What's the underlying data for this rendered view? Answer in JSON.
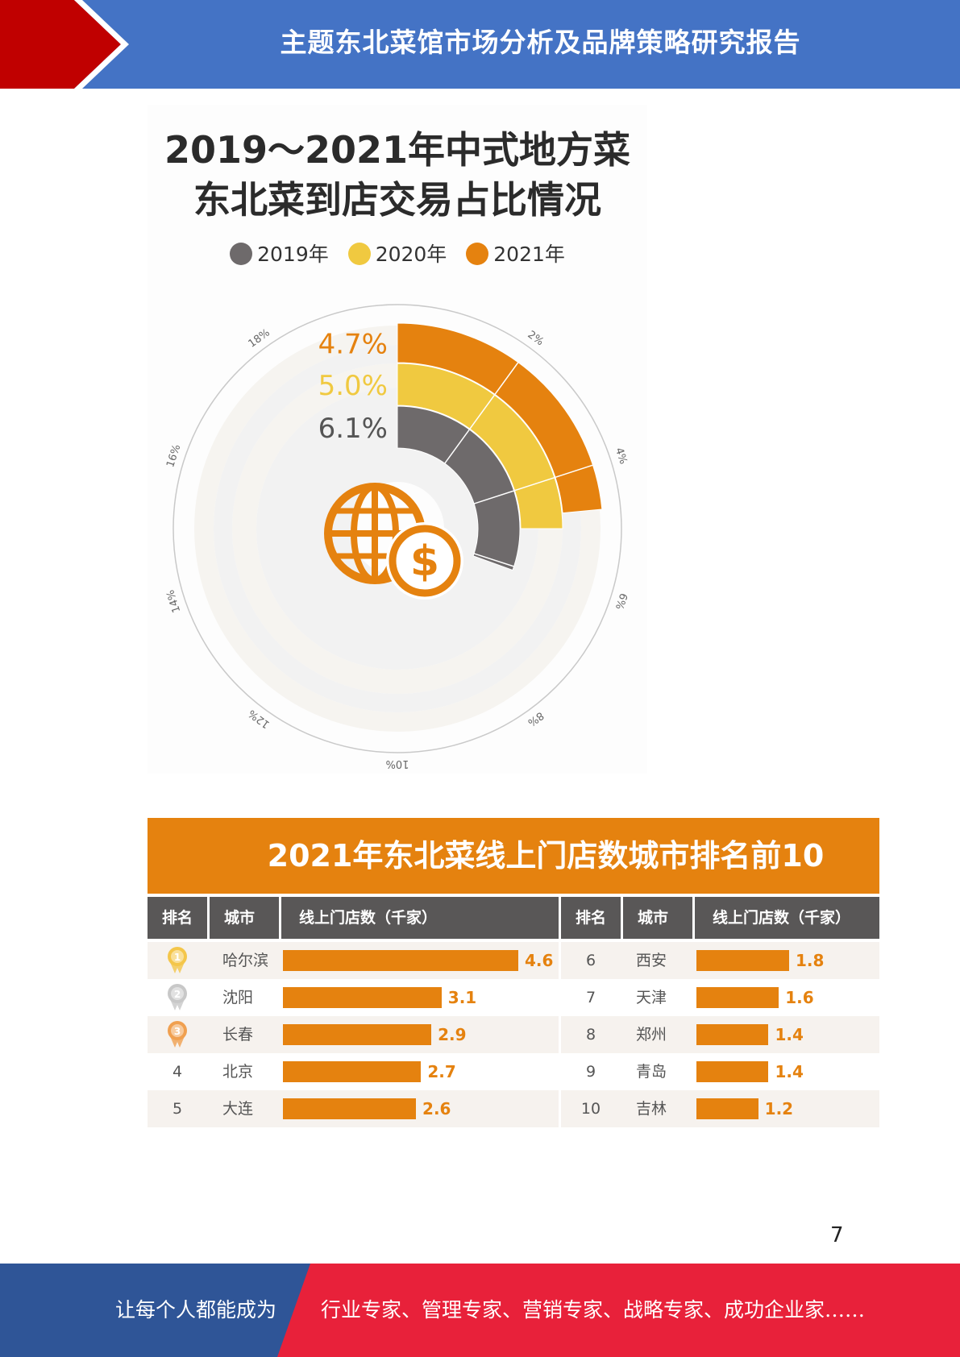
{
  "header": {
    "title": "主题东北菜馆市场分析及品牌策略研究报告"
  },
  "radial": {
    "title_line1": "2019～2021年中式地方菜",
    "title_line2": "东北菜到店交易占比情况",
    "ticks": [
      "2%",
      "4%",
      "6%",
      "8%",
      "10%",
      "12%",
      "14%",
      "16%",
      "18%"
    ],
    "icon": "globe-dollar-icon"
  },
  "table": {
    "title": "2021年东北菜线上门店数城市排名前10",
    "headers": {
      "rank": "排名",
      "city": "城市",
      "count": "线上门店数（千家）"
    },
    "left_rows": [
      {
        "rank": "1",
        "medal": "gold-medal-icon",
        "city": "哈尔滨",
        "value": 4.6,
        "label": "4.6"
      },
      {
        "rank": "2",
        "medal": "silver-medal-icon",
        "city": "沈阳",
        "value": 3.1,
        "label": "3.1"
      },
      {
        "rank": "3",
        "medal": "bronze-medal-icon",
        "city": "长春",
        "value": 2.9,
        "label": "2.9"
      },
      {
        "rank": "4",
        "city": "北京",
        "value": 2.7,
        "label": "2.7"
      },
      {
        "rank": "5",
        "city": "大连",
        "value": 2.6,
        "label": "2.6"
      }
    ],
    "right_rows": [
      {
        "rank": "6",
        "city": "西安",
        "value": 1.8,
        "label": "1.8"
      },
      {
        "rank": "7",
        "city": "天津",
        "value": 1.6,
        "label": "1.6"
      },
      {
        "rank": "8",
        "city": "郑州",
        "value": 1.4,
        "label": "1.4"
      },
      {
        "rank": "9",
        "city": "青岛",
        "value": 1.4,
        "label": "1.4"
      },
      {
        "rank": "10",
        "city": "吉林",
        "value": 1.2,
        "label": "1.2"
      }
    ]
  },
  "page_number": "7",
  "footer": {
    "left_text": "让每个人都能成为",
    "right_text": "行业专家、管理专家、营销专家、战略专家、成功企业家……"
  },
  "colors": {
    "header_blue": "#4473c5",
    "header_red": "#c00000",
    "orange": "#e5820f",
    "yellow": "#f0c940",
    "gray": "#6e6a6b",
    "footer_blue": "#2f5597",
    "footer_red": "#e8213a"
  },
  "chart_data": [
    {
      "type": "radial-bar",
      "title": "2019～2021年中式地方菜东北菜到店交易占比情况",
      "axis": {
        "min": 0,
        "max": 20,
        "unit": "%"
      },
      "series": [
        {
          "name": "2019年",
          "value": 6.1,
          "label": "6.1%",
          "color": "#6e6a6b"
        },
        {
          "name": "2020年",
          "value": 5.0,
          "label": "5.0%",
          "color": "#f0c940"
        },
        {
          "name": "2021年",
          "value": 4.7,
          "label": "4.7%",
          "color": "#e5820f"
        }
      ]
    },
    {
      "type": "bar",
      "title": "2021年东北菜线上门店数城市排名前10",
      "ylabel": "线上门店数（千家）",
      "categories": [
        "哈尔滨",
        "沈阳",
        "长春",
        "北京",
        "大连",
        "西安",
        "天津",
        "郑州",
        "青岛",
        "吉林"
      ],
      "values": [
        4.6,
        3.1,
        2.9,
        2.7,
        2.6,
        1.8,
        1.6,
        1.4,
        1.4,
        1.2
      ]
    }
  ]
}
